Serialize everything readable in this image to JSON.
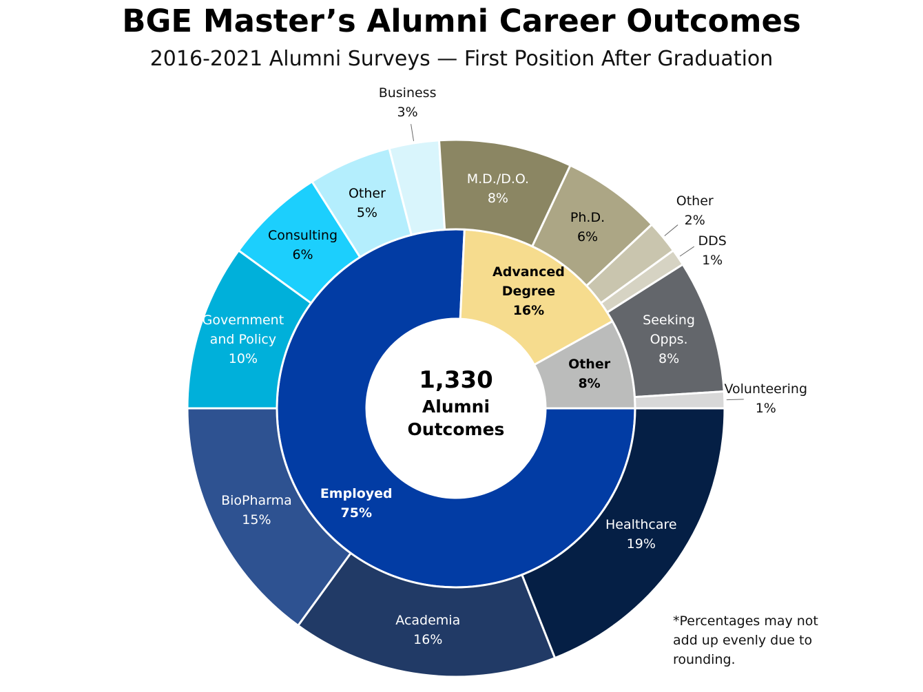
{
  "chart_data": {
    "type": "sunburst",
    "title": "BGE Master’s Alumni Career Outcomes",
    "subtitle": "2016-2021 Alumni Surveys — First Position After Graduation",
    "center": {
      "value": 1330,
      "label": "1,330",
      "caption": "Alumni Outcomes"
    },
    "rings": [
      {
        "categories": [
          "Employed",
          "Advanced Degree",
          "Other"
        ],
        "values": [
          75,
          16,
          8
        ],
        "value_labels": [
          "75%",
          "16%",
          "8%"
        ],
        "colors": [
          "#023ca4",
          "#f6dc8e",
          "#bbbcbb"
        ]
      },
      {
        "categories": [
          "Healthcare",
          "Academia",
          "BioPharma",
          "Government and Policy",
          "Consulting",
          "Other",
          "Business",
          "M.D./D.O.",
          "Ph.D.",
          "Other",
          "DDS",
          "Seeking Opps.",
          "Volunteering"
        ],
        "values": [
          19,
          16,
          15,
          10,
          6,
          5,
          3,
          8,
          6,
          2,
          1,
          8,
          1
        ],
        "value_labels": [
          "19%",
          "16%",
          "15%",
          "10%",
          "6%",
          "5%",
          "3%",
          "8%",
          "6%",
          "2%",
          "1%",
          "8%",
          "1%"
        ],
        "colors": [
          "#051f45",
          "#213a66",
          "#2e5291",
          "#00b0da",
          "#1ccffd",
          "#b4eefd",
          "#d9f5fc",
          "#8b8663",
          "#aca685",
          "#c9c5ae",
          "#d6d3c3",
          "#63666b",
          "#d8d8d8"
        ]
      }
    ],
    "footnote": "*Percentages may not add up evenly due to rounding."
  }
}
